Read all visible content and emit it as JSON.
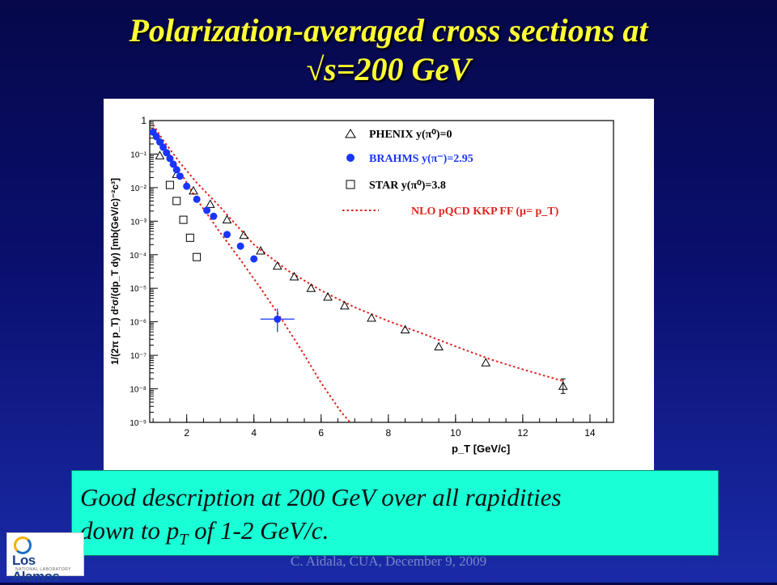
{
  "slide": {
    "title_line1": "Polarization-averaged cross sections at",
    "title_line2": "√s=200 GeV",
    "callout_text_1": "Good description at 200 GeV over all rapidities",
    "callout_text_2": "down to p",
    "callout_sub": "T",
    "callout_text_3": " of 1-2 GeV/c.",
    "footer": "C. Aidala, CUA, December 9, 2009",
    "logo_text": "Los Alamos",
    "logo_sub": "NATIONAL LABORATORY"
  },
  "chart_data": {
    "type": "scatter",
    "xlabel": "p_T [GeV/c]",
    "ylabel": "1/(2π p_T) d²σ/(dp_T dy) [mb(GeV/c)⁻²c³]",
    "log_y": true,
    "xlim": [
      0.9,
      14.7
    ],
    "ylim_exp": [
      -9,
      0
    ],
    "x_ticks": [
      2,
      4,
      6,
      8,
      10,
      12,
      14
    ],
    "y_tick_labels": [
      "1",
      "10⁻¹",
      "10⁻²",
      "10⁻³",
      "10⁻⁴",
      "10⁻⁵",
      "10⁻⁶",
      "10⁻⁷",
      "10⁻⁸",
      "10⁻⁹"
    ],
    "series": [
      {
        "name": "PHENIX y(π⁰)=0",
        "marker": "triangle",
        "color": "#000000",
        "x": [
          1.2,
          1.7,
          2.2,
          2.7,
          3.2,
          3.7,
          4.2,
          4.7,
          5.2,
          5.7,
          6.2,
          6.7,
          7.5,
          8.5,
          9.5,
          10.9,
          13.2
        ],
        "y": [
          0.09,
          0.025,
          0.008,
          0.0032,
          0.0011,
          0.00038,
          0.00013,
          4.6e-05,
          2.2e-05,
          1e-05,
          5.5e-06,
          3e-06,
          1.3e-06,
          5.8e-07,
          1.8e-07,
          6e-08,
          1.2e-08
        ]
      },
      {
        "name": "BRAHMS y(π⁻)=2.95",
        "marker": "filled-circle",
        "color": "#1a35ff",
        "x": [
          1.0,
          1.1,
          1.2,
          1.3,
          1.4,
          1.5,
          1.6,
          1.7,
          1.8,
          2.0,
          2.3,
          2.6,
          2.8,
          3.2,
          3.6,
          4.0,
          4.7
        ],
        "y": [
          0.45,
          0.33,
          0.23,
          0.16,
          0.11,
          0.074,
          0.05,
          0.034,
          0.022,
          0.011,
          0.0045,
          0.0021,
          0.0014,
          0.0004,
          0.00018,
          7.5e-05,
          1.2e-06
        ]
      },
      {
        "name": "STAR y(π⁰)=3.8",
        "marker": "open-square",
        "color": "#000000",
        "x": [
          1.5,
          1.7,
          1.9,
          2.1,
          2.3
        ],
        "y": [
          0.012,
          0.004,
          0.0011,
          0.00032,
          8.5e-05
        ]
      }
    ],
    "curves": [
      {
        "name": "NLO pQCD KKP FF (μ= p_T)",
        "style": "dotted",
        "color": "#e0241e",
        "x": [
          1.0,
          1.3,
          1.8,
          2.3,
          3.0,
          4.0,
          5.0,
          6.0,
          7.0,
          8.0,
          9.0,
          10.0,
          11.0,
          12.0,
          13.2
        ],
        "y": [
          0.75,
          0.26,
          0.055,
          0.014,
          0.0026,
          0.0002,
          3.4e-05,
          8.5e-06,
          2.7e-06,
          1.05e-06,
          4.5e-07,
          1.85e-07,
          7.8e-08,
          3.8e-08,
          1.7e-08
        ]
      },
      {
        "name": "",
        "style": "dotted",
        "color": "#e0241e",
        "x": [
          1.0,
          1.3,
          1.8,
          2.3,
          3.0,
          3.6,
          4.2,
          4.8,
          5.4,
          6.0,
          6.6,
          7.0
        ],
        "y": [
          0.6,
          0.2,
          0.03,
          0.0045,
          0.00045,
          7e-05,
          1e-05,
          1.3e-06,
          1.5e-07,
          1.5e-08,
          2e-09,
          7e-10
        ]
      }
    ]
  }
}
